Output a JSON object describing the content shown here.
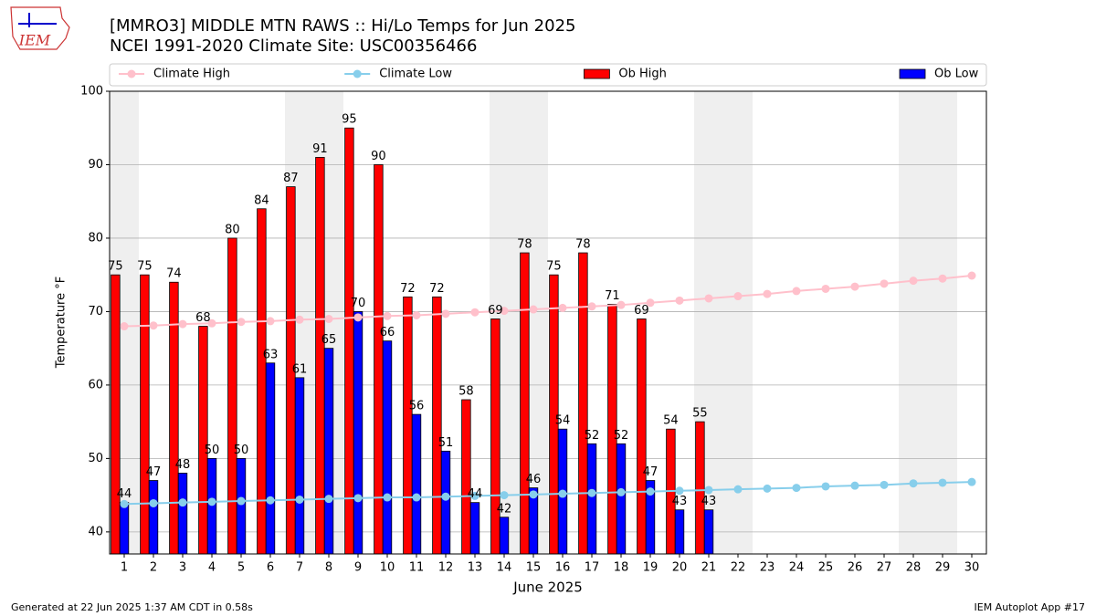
{
  "logo_text": "IEM",
  "footer_left": "Generated at 22 Jun 2025 1:37 AM CDT in 0.58s",
  "footer_right": "IEM Autoplot App #17",
  "chart_data": {
    "type": "bar",
    "title": "[MMRO3] MIDDLE MTN RAWS :: Hi/Lo Temps for Jun 2025",
    "subtitle": "NCEI 1991-2020 Climate Site: USC00356466",
    "x_label": "June 2025",
    "y_label": "Temperature °F",
    "x": [
      1,
      2,
      3,
      4,
      5,
      6,
      7,
      8,
      9,
      10,
      11,
      12,
      13,
      14,
      15,
      16,
      17,
      18,
      19,
      20,
      21,
      22,
      23,
      24,
      25,
      26,
      27,
      28,
      29,
      30
    ],
    "xlim": [
      0.5,
      30.5
    ],
    "xticks": [
      1,
      2,
      3,
      4,
      5,
      6,
      7,
      8,
      9,
      10,
      11,
      12,
      13,
      14,
      15,
      16,
      17,
      18,
      19,
      20,
      21,
      22,
      23,
      24,
      25,
      26,
      27,
      28,
      29,
      30
    ],
    "ylim": [
      37,
      100
    ],
    "yticks": [
      40,
      50,
      60,
      70,
      80,
      90,
      100
    ],
    "grid": true,
    "shaded_spans": [
      [
        0.5,
        1.5
      ],
      [
        6.5,
        8.5
      ],
      [
        13.5,
        15.5
      ],
      [
        20.5,
        22.5
      ],
      [
        27.5,
        29.5
      ]
    ],
    "series": [
      {
        "name": "Climate High",
        "type": "line",
        "color": "#ffc0cb",
        "values": [
          68.0,
          68.1,
          68.3,
          68.4,
          68.6,
          68.7,
          68.9,
          69.0,
          69.2,
          69.4,
          69.5,
          69.7,
          69.9,
          70.1,
          70.3,
          70.5,
          70.7,
          70.9,
          71.2,
          71.5,
          71.8,
          72.1,
          72.4,
          72.8,
          73.1,
          73.4,
          73.8,
          74.2,
          74.5,
          74.9
        ]
      },
      {
        "name": "Climate Low",
        "type": "line",
        "color": "#87ceeb",
        "values": [
          43.8,
          43.9,
          44.0,
          44.1,
          44.2,
          44.3,
          44.4,
          44.5,
          44.6,
          44.7,
          44.7,
          44.8,
          44.9,
          45.0,
          45.1,
          45.2,
          45.3,
          45.4,
          45.5,
          45.6,
          45.7,
          45.8,
          45.9,
          46.0,
          46.2,
          46.3,
          46.4,
          46.6,
          46.7,
          46.8
        ]
      },
      {
        "name": "Ob High",
        "type": "bar",
        "color": "#ff0000",
        "values": [
          75,
          75,
          74,
          68,
          80,
          84,
          87,
          91,
          95,
          90,
          72,
          72,
          58,
          69,
          78,
          75,
          78,
          71,
          69,
          54,
          55,
          null,
          null,
          null,
          null,
          null,
          null,
          null,
          null,
          null
        ]
      },
      {
        "name": "Ob Low",
        "type": "bar",
        "color": "#0000ff",
        "values": [
          44,
          47,
          48,
          50,
          50,
          63,
          61,
          65,
          70,
          66,
          56,
          51,
          44,
          42,
          46,
          54,
          52,
          52,
          47,
          43,
          43,
          null,
          null,
          null,
          null,
          null,
          null,
          null,
          null,
          null
        ]
      }
    ]
  }
}
